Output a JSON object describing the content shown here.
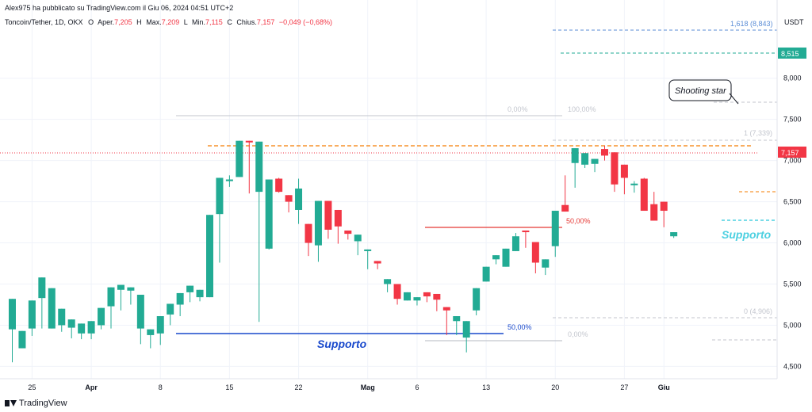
{
  "header": {
    "published_by": "Alex975 ha pubblicato su TradingView.com il Giu 06, 2024 04:51 UTC+2",
    "symbol": "Toncoin/Tether, 1D, OKX",
    "o_label": "O",
    "o_key": "Aper.",
    "o_val": "7,205",
    "h_label": "H",
    "h_key": "Max.",
    "h_val": "7,209",
    "l_label": "L",
    "l_key": "Min.",
    "l_val": "7,115",
    "c_label": "C",
    "c_key": "Chius.",
    "c_val": "7,157",
    "change": "−0,049 (−0,68%)"
  },
  "footer": {
    "brand": "TradingView"
  },
  "colors": {
    "up": "#22ab94",
    "down": "#f23645",
    "grid": "#f0f3fa",
    "axis_text": "#131722",
    "blue": "#1848cc",
    "fib_grey": "#c3c6ce",
    "orange": "#f57c00",
    "red_line": "#e53935",
    "cyan": "#4dd0e1"
  },
  "chart_data": {
    "type": "candlestick",
    "currency": "USDT",
    "ylim": [
      4350,
      8950
    ],
    "yticks": [
      {
        "v": 8000,
        "label": "8,000"
      },
      {
        "v": 7500,
        "label": "7,500"
      },
      {
        "v": 7000,
        "label": "7,000"
      },
      {
        "v": 6500,
        "label": "6,500"
      },
      {
        "v": 6000,
        "label": "6,000"
      },
      {
        "v": 5500,
        "label": "5,500"
      },
      {
        "v": 5000,
        "label": "5,000"
      },
      {
        "v": 4500,
        "label": "4,500"
      }
    ],
    "xticks": [
      {
        "i": 2,
        "label": "25",
        "bold": false
      },
      {
        "i": 8,
        "label": "Apr",
        "bold": true
      },
      {
        "i": 15,
        "label": "8",
        "bold": false
      },
      {
        "i": 22,
        "label": "15",
        "bold": false
      },
      {
        "i": 29,
        "label": "22",
        "bold": false
      },
      {
        "i": 36,
        "label": "Mag",
        "bold": true
      },
      {
        "i": 41,
        "label": "6",
        "bold": false
      },
      {
        "i": 48,
        "label": "13",
        "bold": false
      },
      {
        "i": 55,
        "label": "20",
        "bold": false
      },
      {
        "i": 62,
        "label": "27",
        "bold": false
      },
      {
        "i": 66,
        "label": "Giu",
        "bold": true
      }
    ],
    "candles": [
      [
        4950,
        5320,
        4920,
        4550
      ],
      [
        4720,
        4930,
        4720,
        4860
      ],
      [
        4960,
        5300,
        4870,
        5000
      ],
      [
        5330,
        5580,
        5000,
        4960
      ],
      [
        4960,
        5450,
        5050,
        4960
      ],
      [
        5000,
        5200,
        4990,
        4920
      ],
      [
        4970,
        5070,
        4870,
        4840
      ],
      [
        4900,
        5020,
        4830,
        4870
      ],
      [
        4900,
        5050,
        4830,
        5000
      ],
      [
        5000,
        5210,
        4950,
        4950
      ],
      [
        5230,
        5460,
        4960,
        5170
      ],
      [
        5430,
        5490,
        5180,
        5390
      ],
      [
        5420,
        5460,
        5250,
        5320
      ],
      [
        4960,
        5370,
        4850,
        4770
      ],
      [
        4880,
        4950,
        4780,
        4720
      ],
      [
        4900,
        5110,
        4760,
        4880
      ],
      [
        5130,
        5260,
        5000,
        5020
      ],
      [
        5250,
        5390,
        5150,
        5110
      ],
      [
        5400,
        5480,
        5280,
        5280
      ],
      [
        5340,
        5430,
        5300,
        5290
      ],
      [
        5340,
        6340,
        5380,
        5370
      ],
      [
        6350,
        6790,
        6000,
        5760
      ],
      [
        6750,
        6770,
        6680,
        6820
      ],
      [
        6800,
        7240,
        6820,
        6980
      ],
      [
        7240,
        7220,
        6600,
        7240
      ],
      [
        6620,
        7230,
        5930,
        5040
      ],
      [
        5930,
        6770,
        5920,
        6540
      ],
      [
        6780,
        6620,
        6610,
        6790
      ],
      [
        6580,
        6500,
        6370,
        6400
      ],
      [
        6400,
        6660,
        6230,
        6780
      ],
      [
        6230,
        6000,
        5990,
        5840
      ],
      [
        5970,
        6510,
        6220,
        5770
      ],
      [
        6510,
        6160,
        6050,
        6160
      ],
      [
        6400,
        6200,
        6080,
        5990
      ],
      [
        6150,
        6110,
        6040,
        6050
      ],
      [
        6020,
        6100,
        5920,
        5850
      ],
      [
        5900,
        5920,
        5680,
        5860
      ],
      [
        5780,
        5750,
        5740,
        5680
      ],
      [
        5500,
        5560,
        5480,
        5400
      ],
      [
        5500,
        5320,
        5250,
        5340
      ],
      [
        5300,
        5400,
        5300,
        5350
      ],
      [
        5300,
        5340,
        5240,
        5330
      ],
      [
        5400,
        5350,
        5280,
        5380
      ],
      [
        5380,
        5310,
        5170,
        5290
      ],
      [
        5220,
        5180,
        5060,
        4880
      ],
      [
        5050,
        5110,
        4880,
        4880
      ],
      [
        4850,
        5050,
        4910,
        4670
      ],
      [
        5180,
        5450,
        5120,
        5130
      ],
      [
        5530,
        5710,
        5640,
        5620
      ],
      [
        5800,
        5850,
        5750,
        5740
      ],
      [
        5710,
        5930,
        5850,
        5800
      ],
      [
        5900,
        6080,
        6110,
        6120
      ],
      [
        6150,
        6130,
        5940,
        5940
      ],
      [
        6010,
        5760,
        5720,
        5630
      ],
      [
        5700,
        5800,
        5610,
        5640
      ],
      [
        5960,
        6390,
        6180,
        5830
      ],
      [
        6460,
        6380,
        6600,
        6820
      ],
      [
        6970,
        7150,
        6820,
        6670
      ],
      [
        6950,
        7090,
        6960,
        6910
      ],
      [
        6960,
        7020,
        6990,
        6860
      ],
      [
        7140,
        7060,
        7180,
        7000
      ],
      [
        7100,
        6710,
        6700,
        6620
      ],
      [
        6950,
        6790,
        6590,
        6730
      ],
      [
        6700,
        6720,
        6750,
        6610
      ],
      [
        6780,
        6390,
        6790,
        6640
      ],
      [
        6470,
        6270,
        6430,
        6620
      ],
      [
        6500,
        6390,
        6190,
        6480
      ],
      [
        6080,
        6130,
        6060,
        6070
      ]
    ]
  },
  "levels": {
    "fib_top_left": "0,00%",
    "fib_top_right": "100,00%",
    "fib_mid_label": "50,00%",
    "fib_bottom_label": "50,00%",
    "fib_bottom_zero": "0,00%",
    "right_fib_upper": "1 (7,339)",
    "right_fib_lower": "0 (4,906)",
    "ext_label": "1,618 (8,843)",
    "ext_price": "8,515",
    "last_price": "7,157",
    "support_left": "Supporto",
    "support_right": "Supporto",
    "callout": "Shooting star"
  }
}
